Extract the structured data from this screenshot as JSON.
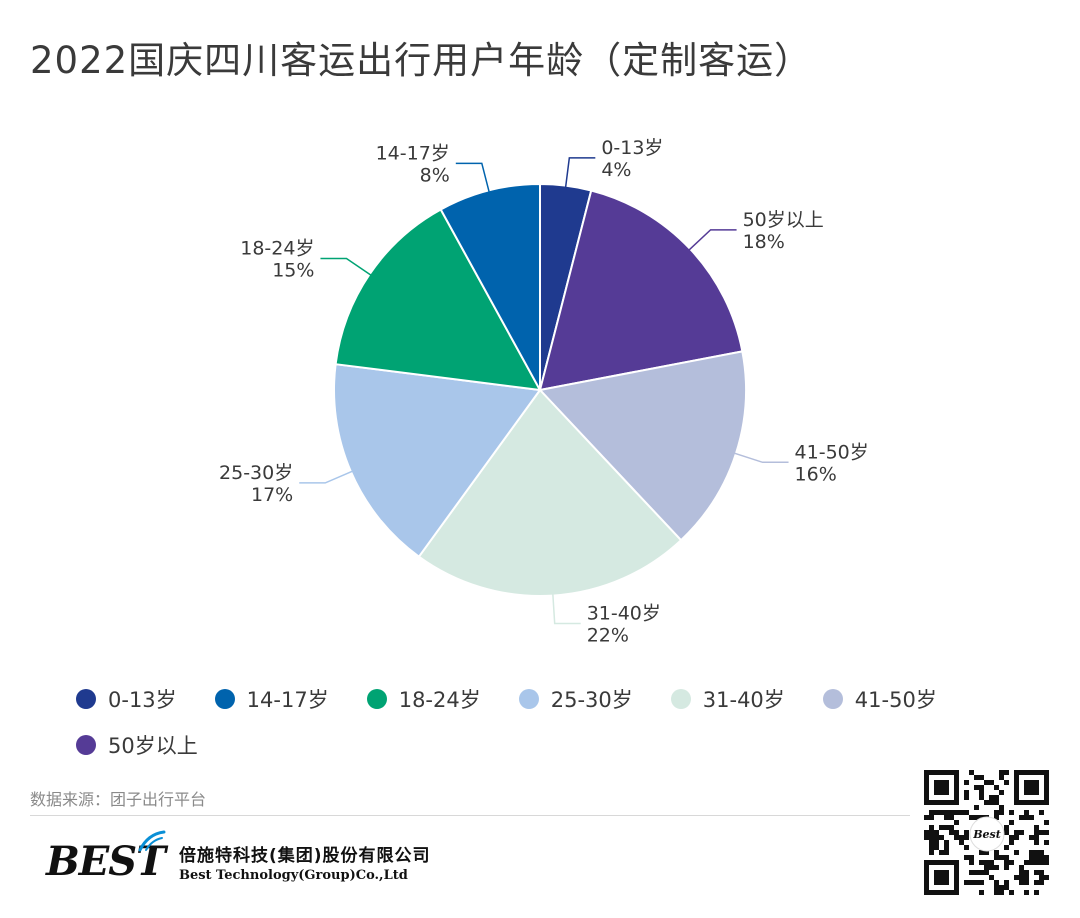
{
  "title": "2022国庆四川客运出行用户年龄（定制客运）",
  "chart_data": {
    "type": "pie",
    "title": "2022国庆四川客运出行用户年龄（定制客运）",
    "slices": [
      {
        "name": "0-13岁",
        "value": 4,
        "label": "4%",
        "color": "#1f3a8f"
      },
      {
        "name": "50岁以上",
        "value": 18,
        "label": "18%",
        "color": "#553b96"
      },
      {
        "name": "41-50岁",
        "value": 16,
        "label": "16%",
        "color": "#b4bedb"
      },
      {
        "name": "31-40岁",
        "value": 22,
        "label": "22%",
        "color": "#d5e9e1"
      },
      {
        "name": "25-30岁",
        "value": 17,
        "label": "17%",
        "color": "#a9c6ea"
      },
      {
        "name": "18-24岁",
        "value": 15,
        "label": "15%",
        "color": "#00a373"
      },
      {
        "name": "14-17岁",
        "value": 8,
        "label": "8%",
        "color": "#0063ad"
      }
    ],
    "legend": [
      {
        "name": "0-13岁",
        "color": "#1f3a8f"
      },
      {
        "name": "14-17岁",
        "color": "#0063ad"
      },
      {
        "name": "18-24岁",
        "color": "#00a373"
      },
      {
        "name": "25-30岁",
        "color": "#a9c6ea"
      },
      {
        "name": "31-40岁",
        "color": "#d5e9e1"
      },
      {
        "name": "41-50岁",
        "color": "#b4bedb"
      },
      {
        "name": "50岁以上",
        "color": "#553b96"
      }
    ],
    "legend_position": "bottom"
  },
  "source": "数据来源：团子出行平台",
  "brand": {
    "logo_text": "BEST",
    "company_cn": "倍施特科技(集团)股份有限公司",
    "company_en": "Best Technology(Group)Co.,Ltd",
    "qr_logo_text": "Best"
  }
}
